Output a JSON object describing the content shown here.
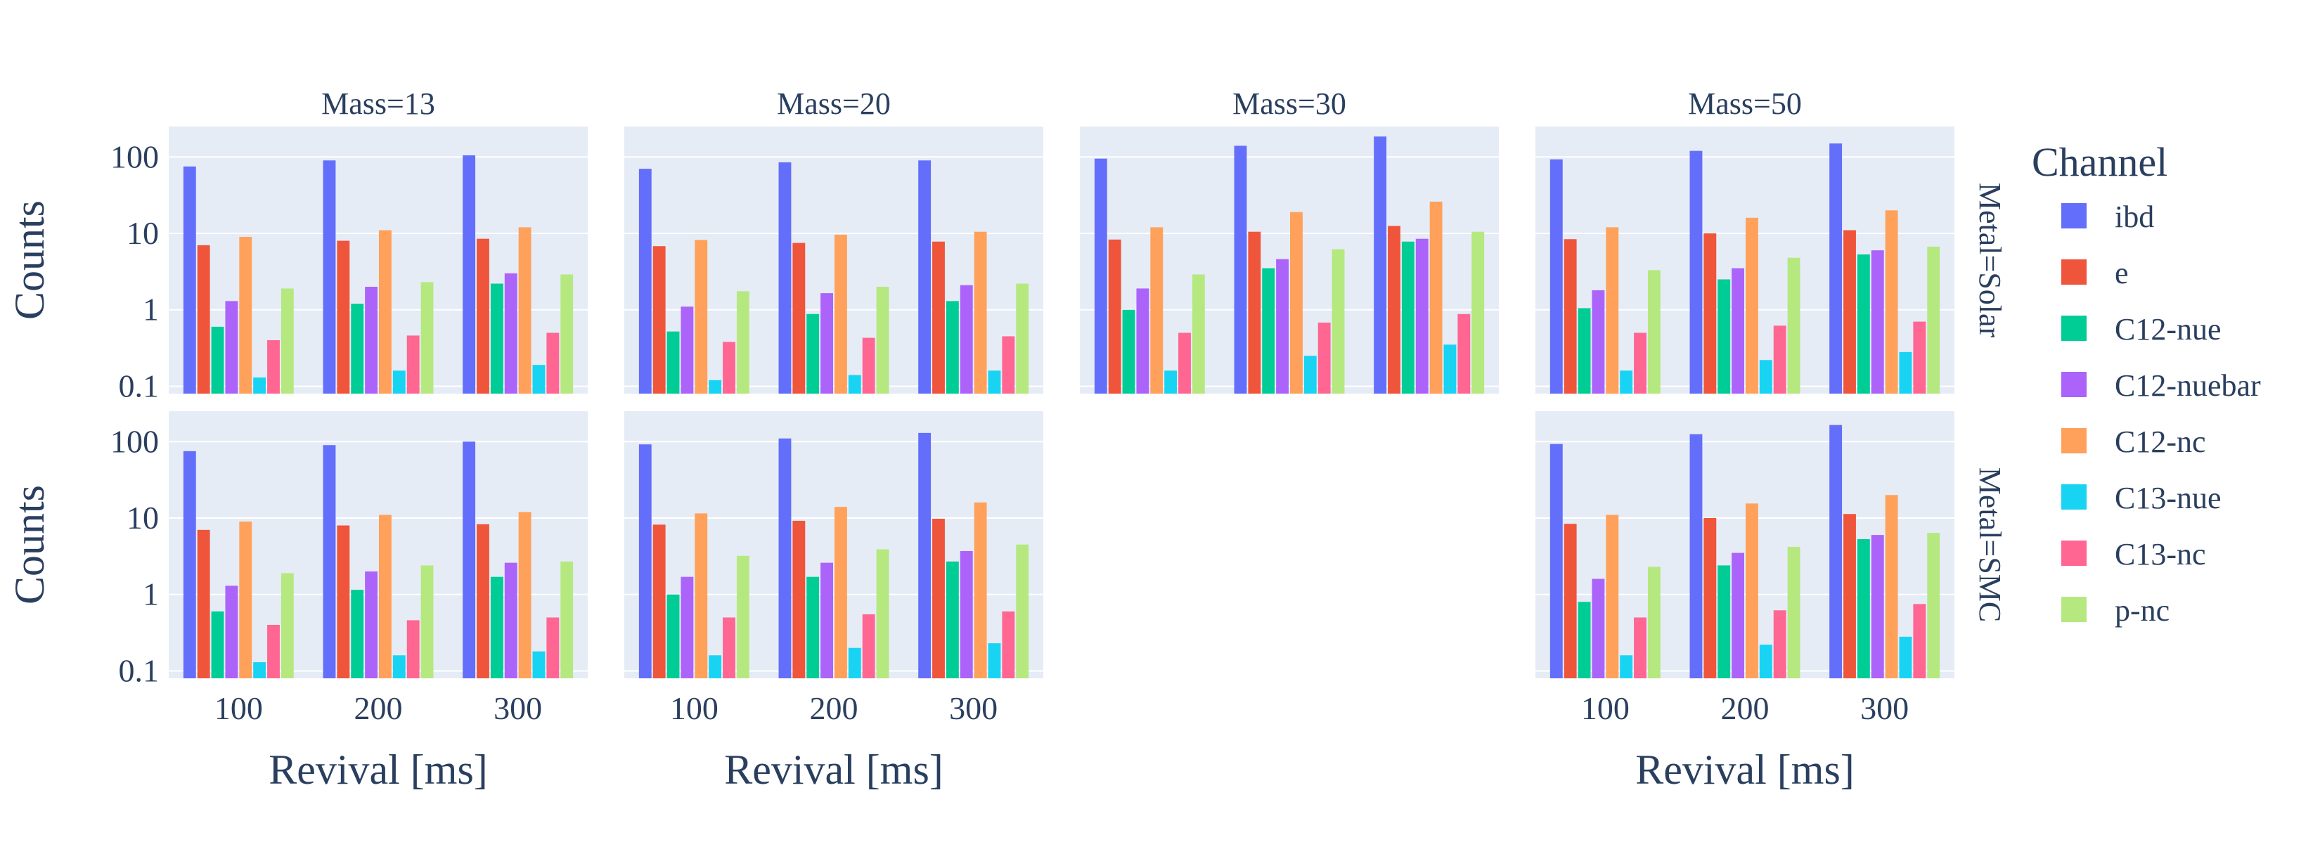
{
  "chart_data": {
    "type": "bar",
    "y_scale": "log",
    "ylim": [
      0.08,
      250
    ],
    "y_ticks": [
      "0.1",
      "1",
      "10",
      "100"
    ],
    "y_tick_values": [
      0.1,
      1,
      10,
      100
    ],
    "categories": [
      "100",
      "200",
      "300"
    ],
    "xlabel": "Revival [ms]",
    "ylabel": "Counts",
    "grid": "on",
    "legend": {
      "title": "Channel",
      "placement": "right"
    },
    "colors": {
      "ibd": "#636efa",
      "e": "#ef553b",
      "C12-nue": "#00cc96",
      "C12-nuebar": "#ab63fa",
      "C12-nc": "#ffa15a",
      "C13-nue": "#19d3f3",
      "C13-nc": "#ff6692",
      "p-nc": "#b6e880"
    },
    "series_names": [
      "ibd",
      "e",
      "C12-nue",
      "C12-nuebar",
      "C12-nc",
      "C13-nue",
      "C13-nc",
      "p-nc"
    ],
    "column_titles": [
      "Mass=13",
      "Mass=20",
      "Mass=30",
      "Mass=50"
    ],
    "row_titles": [
      "Metal=Solar",
      "Metal=SMC"
    ],
    "facets": [
      {
        "column": "Mass=13",
        "row": "Metal=Solar",
        "series": [
          {
            "name": "ibd",
            "values": [
              75,
              90,
              105
            ]
          },
          {
            "name": "e",
            "values": [
              7,
              8,
              8.5
            ]
          },
          {
            "name": "C12-nue",
            "values": [
              0.6,
              1.2,
              2.2
            ]
          },
          {
            "name": "C12-nuebar",
            "values": [
              1.3,
              2.0,
              3.0
            ]
          },
          {
            "name": "C12-nc",
            "values": [
              9,
              11,
              12
            ]
          },
          {
            "name": "C13-nue",
            "values": [
              0.13,
              0.16,
              0.19
            ]
          },
          {
            "name": "C13-nc",
            "values": [
              0.4,
              0.46,
              0.5
            ]
          },
          {
            "name": "p-nc",
            "values": [
              1.9,
              2.3,
              2.9
            ]
          }
        ]
      },
      {
        "column": "Mass=20",
        "row": "Metal=Solar",
        "series": [
          {
            "name": "ibd",
            "values": [
              70,
              85,
              90
            ]
          },
          {
            "name": "e",
            "values": [
              6.8,
              7.5,
              7.8
            ]
          },
          {
            "name": "C12-nue",
            "values": [
              0.52,
              0.88,
              1.3
            ]
          },
          {
            "name": "C12-nuebar",
            "values": [
              1.1,
              1.65,
              2.1
            ]
          },
          {
            "name": "C12-nc",
            "values": [
              8.2,
              9.6,
              10.5
            ]
          },
          {
            "name": "C13-nue",
            "values": [
              0.12,
              0.14,
              0.16
            ]
          },
          {
            "name": "C13-nc",
            "values": [
              0.38,
              0.43,
              0.45
            ]
          },
          {
            "name": "p-nc",
            "values": [
              1.75,
              2.0,
              2.2
            ]
          }
        ]
      },
      {
        "column": "Mass=30",
        "row": "Metal=Solar",
        "series": [
          {
            "name": "ibd",
            "values": [
              95,
              140,
              185
            ]
          },
          {
            "name": "e",
            "values": [
              8.3,
              10.5,
              12.5
            ]
          },
          {
            "name": "C12-nue",
            "values": [
              1.0,
              3.5,
              7.8
            ]
          },
          {
            "name": "C12-nuebar",
            "values": [
              1.9,
              4.6,
              8.5
            ]
          },
          {
            "name": "C12-nc",
            "values": [
              12,
              19,
              26
            ]
          },
          {
            "name": "C13-nue",
            "values": [
              0.16,
              0.25,
              0.35
            ]
          },
          {
            "name": "C13-nc",
            "values": [
              0.5,
              0.68,
              0.88
            ]
          },
          {
            "name": "p-nc",
            "values": [
              2.9,
              6.2,
              10.5
            ]
          }
        ]
      },
      {
        "column": "Mass=50",
        "row": "Metal=Solar",
        "series": [
          {
            "name": "ibd",
            "values": [
              93,
              120,
              150
            ]
          },
          {
            "name": "e",
            "values": [
              8.4,
              10,
              11
            ]
          },
          {
            "name": "C12-nue",
            "values": [
              1.05,
              2.5,
              5.3
            ]
          },
          {
            "name": "C12-nuebar",
            "values": [
              1.8,
              3.5,
              6.0
            ]
          },
          {
            "name": "C12-nc",
            "values": [
              12,
              16,
              20
            ]
          },
          {
            "name": "C13-nue",
            "values": [
              0.16,
              0.22,
              0.28
            ]
          },
          {
            "name": "C13-nc",
            "values": [
              0.5,
              0.62,
              0.7
            ]
          },
          {
            "name": "p-nc",
            "values": [
              3.3,
              4.8,
              6.7
            ]
          }
        ]
      },
      {
        "column": "Mass=13",
        "row": "Metal=SMC",
        "series": [
          {
            "name": "ibd",
            "values": [
              75,
              90,
              100
            ]
          },
          {
            "name": "e",
            "values": [
              7,
              8,
              8.3
            ]
          },
          {
            "name": "C12-nue",
            "values": [
              0.6,
              1.15,
              1.7
            ]
          },
          {
            "name": "C12-nuebar",
            "values": [
              1.3,
              2.0,
              2.6
            ]
          },
          {
            "name": "C12-nc",
            "values": [
              9,
              11,
              12
            ]
          },
          {
            "name": "C13-nue",
            "values": [
              0.13,
              0.16,
              0.18
            ]
          },
          {
            "name": "C13-nc",
            "values": [
              0.4,
              0.46,
              0.5
            ]
          },
          {
            "name": "p-nc",
            "values": [
              1.9,
              2.4,
              2.7
            ]
          }
        ]
      },
      {
        "column": "Mass=20",
        "row": "Metal=SMC",
        "series": [
          {
            "name": "ibd",
            "values": [
              92,
              110,
              130
            ]
          },
          {
            "name": "e",
            "values": [
              8.2,
              9.2,
              9.8
            ]
          },
          {
            "name": "C12-nue",
            "values": [
              1.0,
              1.7,
              2.7
            ]
          },
          {
            "name": "C12-nuebar",
            "values": [
              1.7,
              2.6,
              3.7
            ]
          },
          {
            "name": "C12-nc",
            "values": [
              11.5,
              14,
              16
            ]
          },
          {
            "name": "C13-nue",
            "values": [
              0.16,
              0.2,
              0.23
            ]
          },
          {
            "name": "C13-nc",
            "values": [
              0.5,
              0.55,
              0.6
            ]
          },
          {
            "name": "p-nc",
            "values": [
              3.2,
              3.9,
              4.5
            ]
          }
        ]
      },
      {
        "column": "Mass=50",
        "row": "Metal=SMC",
        "series": [
          {
            "name": "ibd",
            "values": [
              93,
              125,
              165
            ]
          },
          {
            "name": "e",
            "values": [
              8.4,
              10,
              11.3
            ]
          },
          {
            "name": "C12-nue",
            "values": [
              0.8,
              2.4,
              5.3
            ]
          },
          {
            "name": "C12-nuebar",
            "values": [
              1.6,
              3.5,
              6.0
            ]
          },
          {
            "name": "C12-nc",
            "values": [
              11,
              15.5,
              20
            ]
          },
          {
            "name": "C13-nue",
            "values": [
              0.16,
              0.22,
              0.28
            ]
          },
          {
            "name": "C13-nc",
            "values": [
              0.5,
              0.62,
              0.75
            ]
          },
          {
            "name": "p-nc",
            "values": [
              2.3,
              4.2,
              6.4
            ]
          }
        ]
      }
    ]
  }
}
